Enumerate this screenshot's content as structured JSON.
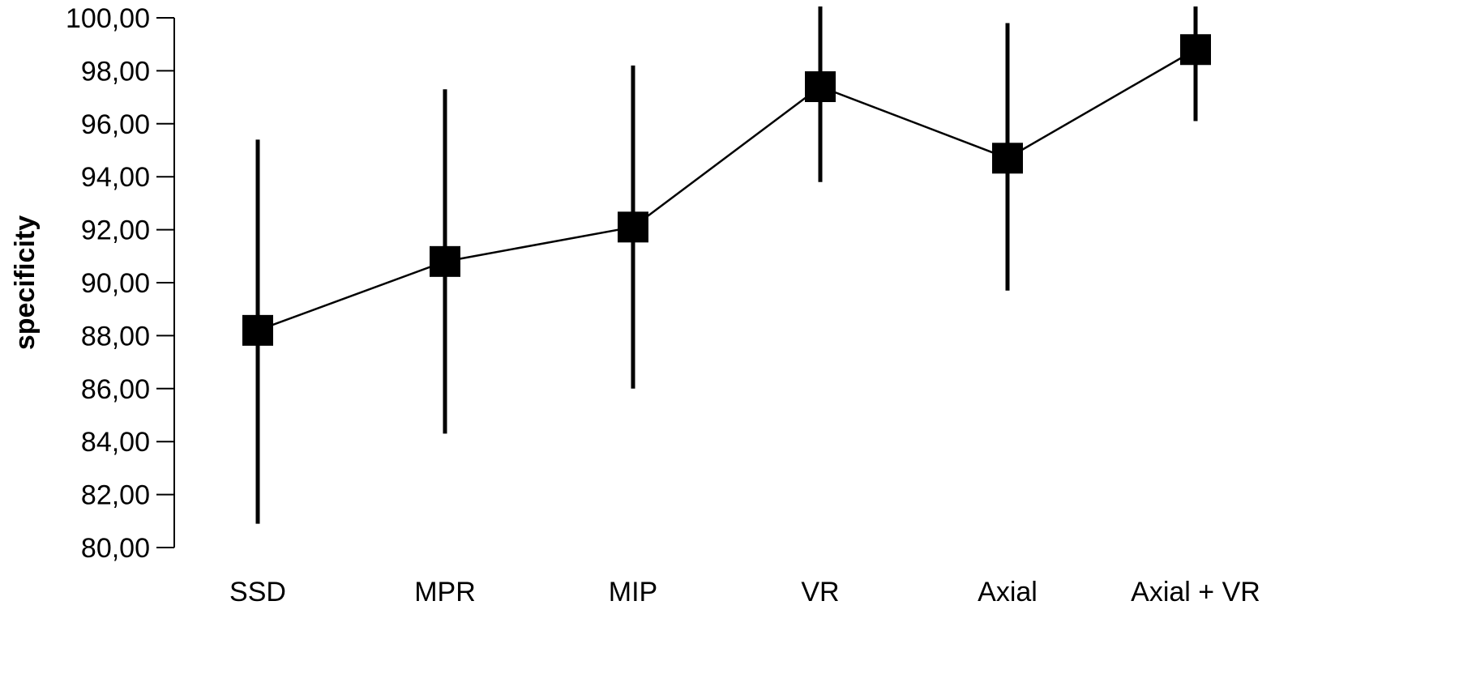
{
  "chart_data": {
    "type": "line",
    "title": "",
    "xlabel": "",
    "ylabel": "specificity",
    "ylim": [
      80,
      100
    ],
    "yticks": [
      "80,00",
      "82,00",
      "84,00",
      "86,00",
      "88,00",
      "90,00",
      "92,00",
      "94,00",
      "96,00",
      "98,00",
      "100,00"
    ],
    "categories": [
      "SSD",
      "MPR",
      "MIP",
      "VR",
      "Axial",
      "Axial + VR"
    ],
    "series": [
      {
        "values": [
          88.2,
          90.8,
          92.1,
          97.4,
          94.7,
          98.8
        ],
        "error_low": [
          80.9,
          84.3,
          86.0,
          93.8,
          89.7,
          96.1
        ],
        "error_high": [
          95.4,
          97.3,
          98.2,
          100.5,
          99.8,
          100.5
        ]
      }
    ],
    "grid": false,
    "legend": "none",
    "line_color": "#000000",
    "marker": "square"
  }
}
